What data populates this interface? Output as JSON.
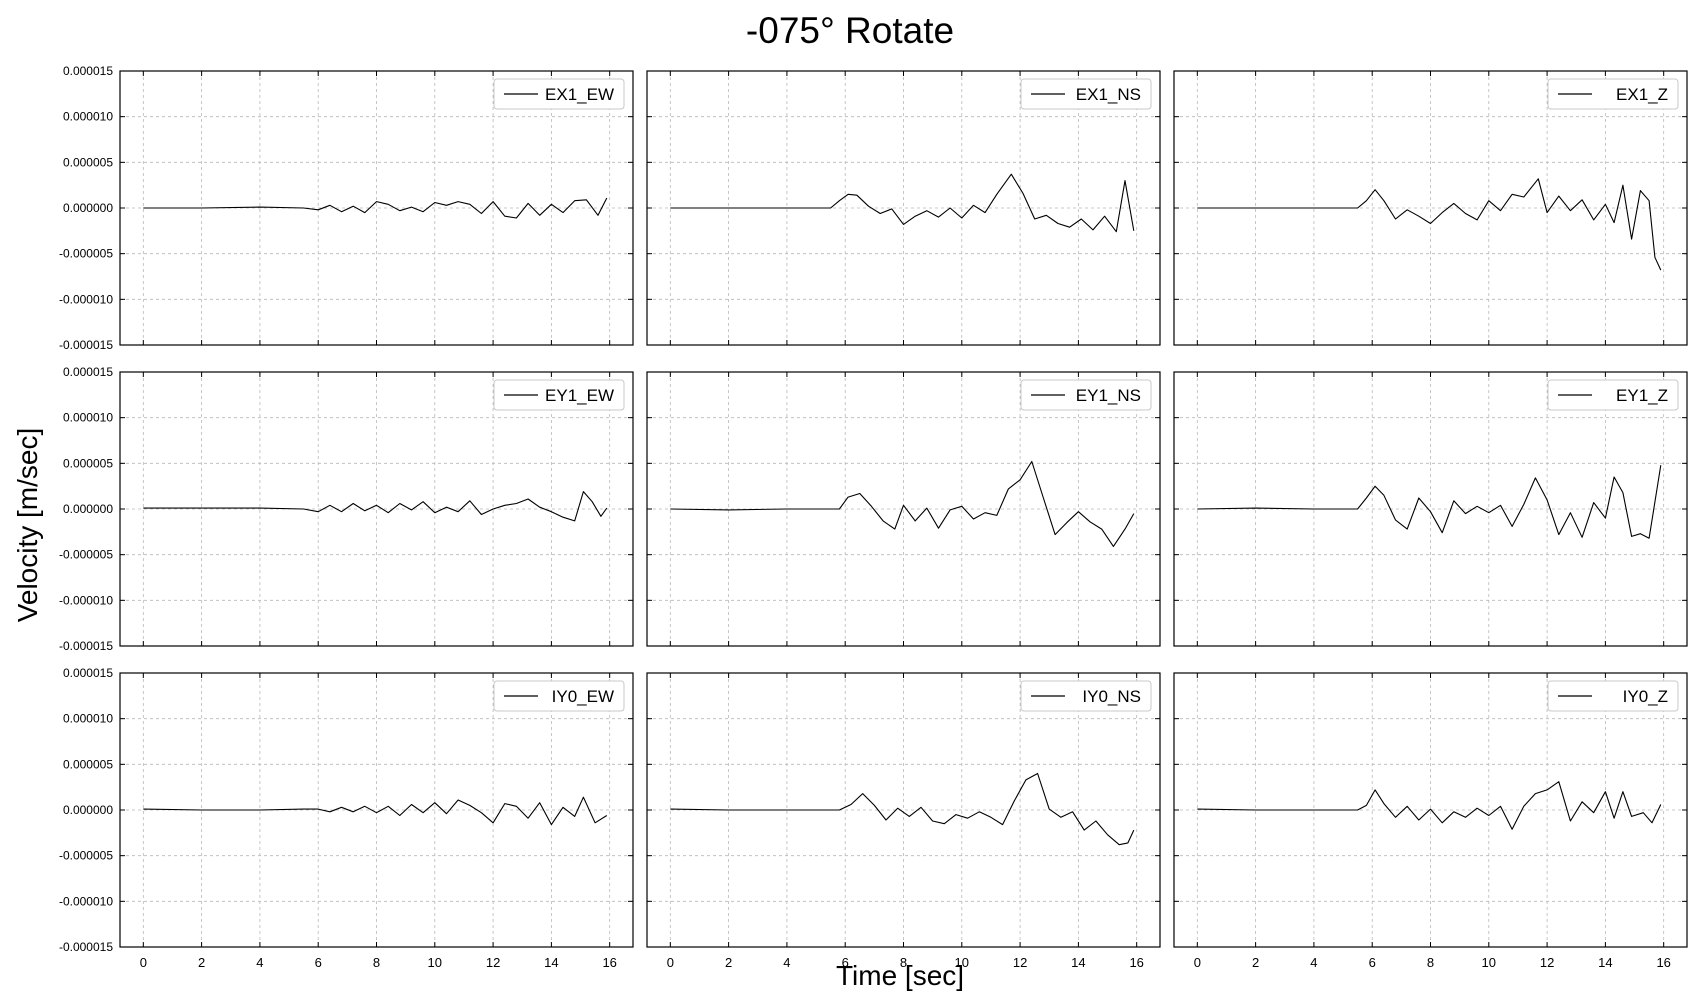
{
  "figure": {
    "title": "-075° Rotate",
    "xlabel": "Time [sec]",
    "ylabel": "Velocity [m/sec]"
  },
  "axes": {
    "y_ticks": [
      "0.000015",
      "0.000010",
      "0.000005",
      "0.000000",
      "-0.000005",
      "-0.000010",
      "-0.000015"
    ],
    "x_ticks": [
      "0",
      "2",
      "4",
      "6",
      "8",
      "10",
      "12",
      "14",
      "16"
    ]
  },
  "chart_data": [
    {
      "type": "line",
      "legend": "EX1_EW",
      "xlim": [
        -0.8,
        16.8
      ],
      "ylim": [
        -1.5e-05,
        1.5e-05
      ],
      "grid": true,
      "legend_position": "top-right",
      "x": [
        0,
        2,
        4,
        5.5,
        6,
        6.4,
        6.8,
        7.2,
        7.6,
        8,
        8.4,
        8.8,
        9.2,
        9.6,
        10,
        10.4,
        10.8,
        11.2,
        11.6,
        12,
        12.4,
        12.8,
        13.2,
        13.6,
        14,
        14.4,
        14.8,
        15.2,
        15.6,
        15.9
      ],
      "y": [
        0,
        0,
        1e-07,
        0,
        -2e-07,
        3e-07,
        -4e-07,
        2e-07,
        -5e-07,
        7e-07,
        4e-07,
        -3e-07,
        1e-07,
        -4e-07,
        6e-07,
        3e-07,
        7e-07,
        4e-07,
        -6e-07,
        7e-07,
        -9e-07,
        -1.1e-06,
        5e-07,
        -8e-07,
        4e-07,
        -5e-07,
        8e-07,
        9e-07,
        -8e-07,
        1.1e-06
      ]
    },
    {
      "type": "line",
      "legend": "EX1_NS",
      "xlim": [
        -0.8,
        16.8
      ],
      "ylim": [
        -1.5e-05,
        1.5e-05
      ],
      "grid": true,
      "legend_position": "top-right",
      "x": [
        0,
        2,
        4,
        5.5,
        5.8,
        6.1,
        6.4,
        6.8,
        7.2,
        7.6,
        8,
        8.4,
        8.8,
        9.2,
        9.6,
        10,
        10.4,
        10.8,
        11.2,
        11.7,
        12.1,
        12.5,
        12.9,
        13.3,
        13.7,
        14.1,
        14.5,
        14.9,
        15.3,
        15.6,
        15.9
      ],
      "y": [
        0,
        0,
        0,
        0,
        8e-07,
        1.5e-06,
        1.4e-06,
        2e-07,
        -6e-07,
        -1e-07,
        -1.8e-06,
        -9e-07,
        -3e-07,
        -1e-06,
        0,
        -1.1e-06,
        3e-07,
        -5e-07,
        1.5e-06,
        3.7e-06,
        1.6e-06,
        -1.2e-06,
        -8e-07,
        -1.7e-06,
        -2.1e-06,
        -1.2e-06,
        -2.4e-06,
        -9e-07,
        -2.6e-06,
        3e-06,
        -2.5e-06
      ]
    },
    {
      "type": "line",
      "legend": "EX1_Z",
      "xlim": [
        -0.8,
        16.8
      ],
      "ylim": [
        -1.5e-05,
        1.5e-05
      ],
      "grid": true,
      "legend_position": "top-right",
      "x": [
        0,
        2,
        4,
        5.5,
        5.8,
        6.1,
        6.4,
        6.8,
        7.2,
        7.6,
        8,
        8.4,
        8.8,
        9.2,
        9.6,
        10,
        10.4,
        10.8,
        11.2,
        11.7,
        12,
        12.4,
        12.8,
        13.2,
        13.6,
        14,
        14.3,
        14.6,
        14.9,
        15.2,
        15.5,
        15.7,
        15.9
      ],
      "y": [
        0,
        0,
        0,
        0,
        8e-07,
        2e-06,
        8e-07,
        -1.2e-06,
        -2e-07,
        -9e-07,
        -1.7e-06,
        -5e-07,
        5e-07,
        -6e-07,
        -1.3e-06,
        8e-07,
        -3e-07,
        1.5e-06,
        1.2e-06,
        3.2e-06,
        -5e-07,
        1.3e-06,
        -3e-07,
        9e-07,
        -1.3e-06,
        4e-07,
        -1.6e-06,
        2.5e-06,
        -3.4e-06,
        1.9e-06,
        8e-07,
        -5.4e-06,
        -6.8e-06
      ]
    },
    {
      "type": "line",
      "legend": "EY1_EW",
      "xlim": [
        -0.8,
        16.8
      ],
      "ylim": [
        -1.5e-05,
        1.5e-05
      ],
      "grid": true,
      "legend_position": "top-right",
      "x": [
        0,
        2,
        4,
        5.5,
        6,
        6.4,
        6.8,
        7.2,
        7.6,
        8,
        8.4,
        8.8,
        9.2,
        9.6,
        10,
        10.4,
        10.8,
        11.2,
        11.6,
        12,
        12.4,
        12.8,
        13.2,
        13.6,
        14,
        14.4,
        14.8,
        15.1,
        15.4,
        15.7,
        15.9
      ],
      "y": [
        1e-07,
        1e-07,
        1e-07,
        0,
        -3e-07,
        4e-07,
        -3e-07,
        6e-07,
        -2e-07,
        4e-07,
        -4e-07,
        6e-07,
        -1e-07,
        8e-07,
        -4e-07,
        2e-07,
        -3e-07,
        9e-07,
        -6e-07,
        0,
        4e-07,
        6e-07,
        1.1e-06,
        2e-07,
        -3e-07,
        -9e-07,
        -1.3e-06,
        1.9e-06,
        8e-07,
        -8e-07,
        1e-07
      ]
    },
    {
      "type": "line",
      "legend": "EY1_NS",
      "xlim": [
        -0.8,
        16.8
      ],
      "ylim": [
        -1.5e-05,
        1.5e-05
      ],
      "grid": true,
      "legend_position": "top-right",
      "x": [
        0,
        2,
        4,
        5.5,
        5.8,
        6.1,
        6.5,
        6.9,
        7.3,
        7.7,
        8,
        8.4,
        8.8,
        9.2,
        9.6,
        10,
        10.4,
        10.8,
        11.2,
        11.6,
        12,
        12.4,
        12.8,
        13.2,
        13.6,
        14,
        14.4,
        14.8,
        15.2,
        15.6,
        15.9
      ],
      "y": [
        0,
        -1e-07,
        0,
        0,
        0,
        1.3e-06,
        1.7e-06,
        3e-07,
        -1.3e-06,
        -2.2e-06,
        4e-07,
        -1.3e-06,
        1e-07,
        -2.1e-06,
        -1e-07,
        3e-07,
        -1.1e-06,
        -4e-07,
        -7e-07,
        2.2e-06,
        3.2e-06,
        5.2e-06,
        1.2e-06,
        -2.8e-06,
        -1.5e-06,
        -3e-07,
        -1.4e-06,
        -2.2e-06,
        -4.1e-06,
        -2.2e-06,
        -5e-07
      ]
    },
    {
      "type": "line",
      "legend": "EY1_Z",
      "xlim": [
        -0.8,
        16.8
      ],
      "ylim": [
        -1.5e-05,
        1.5e-05
      ],
      "grid": true,
      "legend_position": "top-right",
      "x": [
        0,
        2,
        4,
        5.5,
        5.8,
        6.1,
        6.4,
        6.8,
        7.2,
        7.6,
        8,
        8.4,
        8.8,
        9.2,
        9.6,
        10,
        10.4,
        10.8,
        11.2,
        11.6,
        12,
        12.4,
        12.8,
        13.2,
        13.6,
        14,
        14.3,
        14.6,
        14.9,
        15.2,
        15.5,
        15.9
      ],
      "y": [
        0,
        1e-07,
        0,
        0,
        1.2e-06,
        2.5e-06,
        1.5e-06,
        -1.2e-06,
        -2.2e-06,
        1.2e-06,
        -3e-07,
        -2.6e-06,
        9e-07,
        -5e-07,
        3e-07,
        -4e-07,
        4e-07,
        -1.9e-06,
        5e-07,
        3.4e-06,
        1e-06,
        -2.8e-06,
        -4e-07,
        -3.1e-06,
        7e-07,
        -1e-06,
        3.5e-06,
        1.8e-06,
        -3e-06,
        -2.7e-06,
        -3.2e-06,
        4.8e-06
      ]
    },
    {
      "type": "line",
      "legend": "IY0_EW",
      "xlim": [
        -0.8,
        16.8
      ],
      "ylim": [
        -1.5e-05,
        1.5e-05
      ],
      "grid": true,
      "legend_position": "top-right",
      "x": [
        0,
        2,
        4,
        5.5,
        6,
        6.4,
        6.8,
        7.2,
        7.6,
        8,
        8.4,
        8.8,
        9.2,
        9.6,
        10,
        10.4,
        10.8,
        11.2,
        11.6,
        12,
        12.4,
        12.8,
        13.2,
        13.6,
        14,
        14.4,
        14.8,
        15.1,
        15.5,
        15.9
      ],
      "y": [
        1e-07,
        0,
        0,
        1e-07,
        1e-07,
        -2e-07,
        3e-07,
        -2e-07,
        4e-07,
        -3e-07,
        4e-07,
        -6e-07,
        6e-07,
        -3e-07,
        8e-07,
        -4e-07,
        1.1e-06,
        5e-07,
        -3e-07,
        -1.4e-06,
        7e-07,
        4e-07,
        -9e-07,
        8e-07,
        -1.6e-06,
        3e-07,
        -7e-07,
        1.4e-06,
        -1.4e-06,
        -6e-07
      ]
    },
    {
      "type": "line",
      "legend": "IY0_NS",
      "xlim": [
        -0.8,
        16.8
      ],
      "ylim": [
        -1.5e-05,
        1.5e-05
      ],
      "grid": true,
      "legend_position": "top-right",
      "x": [
        0,
        2,
        4,
        5.5,
        5.8,
        6.2,
        6.6,
        7,
        7.4,
        7.8,
        8.2,
        8.6,
        9,
        9.4,
        9.8,
        10.2,
        10.6,
        11,
        11.4,
        11.8,
        12.2,
        12.6,
        13,
        13.4,
        13.8,
        14.2,
        14.6,
        15,
        15.4,
        15.7,
        15.9
      ],
      "y": [
        1e-07,
        0,
        0,
        0,
        0,
        6e-07,
        1.8e-06,
        5e-07,
        -1.1e-06,
        2e-07,
        -7e-07,
        3e-07,
        -1.2e-06,
        -1.5e-06,
        -5e-07,
        -9e-07,
        -2e-07,
        -8e-07,
        -1.6e-06,
        1e-06,
        3.3e-06,
        4e-06,
        1e-07,
        -8e-07,
        -2e-07,
        -2.2e-06,
        -1.2e-06,
        -2.7e-06,
        -3.8e-06,
        -3.6e-06,
        -2.2e-06
      ]
    },
    {
      "type": "line",
      "legend": "IY0_Z",
      "xlim": [
        -0.8,
        16.8
      ],
      "ylim": [
        -1.5e-05,
        1.5e-05
      ],
      "grid": true,
      "legend_position": "top-right",
      "x": [
        0,
        2,
        4,
        5.5,
        5.8,
        6.1,
        6.4,
        6.8,
        7.2,
        7.6,
        8,
        8.4,
        8.8,
        9.2,
        9.6,
        10,
        10.4,
        10.8,
        11.2,
        11.6,
        12,
        12.4,
        12.8,
        13.2,
        13.6,
        14,
        14.3,
        14.6,
        14.9,
        15.3,
        15.6,
        15.9
      ],
      "y": [
        1e-07,
        0,
        0,
        0,
        5e-07,
        2.2e-06,
        7e-07,
        -8e-07,
        4e-07,
        -1.1e-06,
        1e-07,
        -1.4e-06,
        -2e-07,
        -8e-07,
        2e-07,
        -6e-07,
        4e-07,
        -2.1e-06,
        4e-07,
        1.8e-06,
        2.2e-06,
        3.1e-06,
        -1.2e-06,
        9e-07,
        -3e-07,
        2e-06,
        -9e-07,
        2e-06,
        -7e-07,
        -3e-07,
        -1.4e-06,
        6e-07
      ]
    }
  ]
}
